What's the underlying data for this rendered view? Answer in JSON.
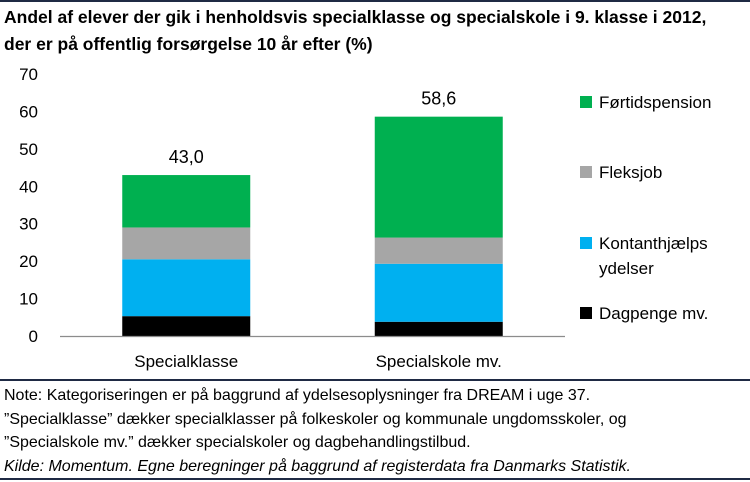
{
  "title": {
    "line1": "Andel af elever der gik i henholdsvis specialklasse og specialskole i 9. klasse i 2012,",
    "line2": "der er på offentlig forsørgelse 10 år efter (%)"
  },
  "chart_data": {
    "type": "bar",
    "stacked": true,
    "categories": [
      "Specialklasse",
      "Specialskole mv."
    ],
    "series": [
      {
        "name": "Dagpenge mv.",
        "color": "#000000",
        "values": [
          5.3,
          3.8
        ]
      },
      {
        "name": "Kontanthjælps ydelser",
        "color": "#00b0f0",
        "values": [
          15.2,
          15.5
        ]
      },
      {
        "name": "Fleksjob",
        "color": "#a6a6a6",
        "values": [
          8.5,
          7.0
        ]
      },
      {
        "name": "Førtidspension",
        "color": "#00b050",
        "values": [
          14.0,
          32.3
        ]
      }
    ],
    "totals": [
      "43,0",
      "58,6"
    ],
    "legend_order": [
      {
        "series": 3,
        "lines": [
          "Førtidspension"
        ]
      },
      {
        "series": 2,
        "lines": [
          "Fleksjob"
        ]
      },
      {
        "series": 1,
        "lines": [
          "Kontanthjælps",
          "ydelser"
        ]
      },
      {
        "series": 0,
        "lines": [
          "Dagpenge mv."
        ]
      }
    ],
    "ylim": [
      0,
      70
    ],
    "yticks": [
      0,
      10,
      20,
      30,
      40,
      50,
      60,
      70
    ],
    "xlabel": "",
    "ylabel": "",
    "grid": false,
    "legend_position": "right"
  },
  "note": {
    "line1": "Note: Kategoriseringen er på baggrund af ydelsesoplysninger fra DREAM i uge 37.",
    "line2": "”Specialklasse” dækker specialklasser på folkeskoler og kommunale ungdomsskoler, og",
    "line3": "”Specialskole mv.” dækker specialskoler og dagbehandlingstilbud.",
    "source": "Kilde: Momentum. Egne beregninger på baggrund af registerdata fra Danmarks Statistik."
  }
}
